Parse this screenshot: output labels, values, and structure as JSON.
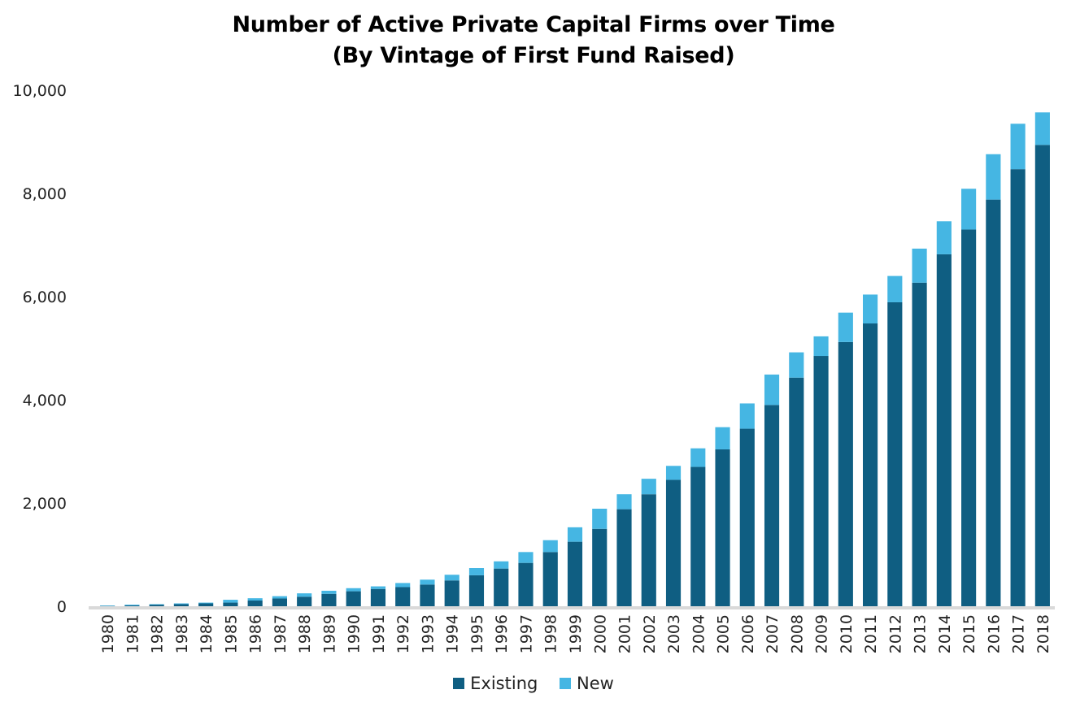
{
  "chart_data": {
    "type": "bar",
    "stacked": true,
    "title": "Number of Active Private Capital Firms over Time",
    "subtitle": "(By Vintage of First Fund Raised)",
    "xlabel": "",
    "ylabel": "",
    "ylim": [
      0,
      10000
    ],
    "yticks": [
      "0",
      "2,000",
      "4,000",
      "6,000",
      "8,000",
      "10,000"
    ],
    "ytick_values": [
      0,
      2000,
      4000,
      6000,
      8000,
      10000
    ],
    "categories": [
      "1980",
      "1981",
      "1982",
      "1983",
      "1984",
      "1985",
      "1986",
      "1987",
      "1988",
      "1989",
      "1990",
      "1991",
      "1992",
      "1993",
      "1994",
      "1995",
      "1996",
      "1997",
      "1998",
      "1999",
      "2000",
      "2001",
      "2002",
      "2003",
      "2004",
      "2005",
      "2006",
      "2007",
      "2008",
      "2009",
      "2010",
      "2011",
      "2012",
      "2013",
      "2014",
      "2015",
      "2016",
      "2017",
      "2018"
    ],
    "series": [
      {
        "name": "Existing",
        "color": "#0f5e82",
        "values": [
          5,
          15,
          30,
          40,
          55,
          70,
          110,
          150,
          185,
          240,
          290,
          335,
          370,
          420,
          500,
          600,
          730,
          840,
          1050,
          1250,
          1500,
          1880,
          2170,
          2450,
          2700,
          3040,
          3440,
          3900,
          4430,
          4850,
          5120,
          5480,
          5890,
          6270,
          6820,
          7300,
          7880,
          8470,
          8940
        ]
      },
      {
        "name": "New",
        "color": "#45b6e3",
        "values": [
          10,
          15,
          10,
          15,
          15,
          55,
          45,
          45,
          65,
          60,
          60,
          50,
          80,
          95,
          110,
          140,
          140,
          210,
          230,
          280,
          390,
          290,
          300,
          270,
          360,
          430,
          490,
          590,
          490,
          380,
          570,
          560,
          510,
          660,
          640,
          790,
          880,
          880,
          630
        ]
      }
    ],
    "legend": [
      "Existing",
      "New"
    ],
    "legend_position": "bottom-center",
    "grid": false
  }
}
